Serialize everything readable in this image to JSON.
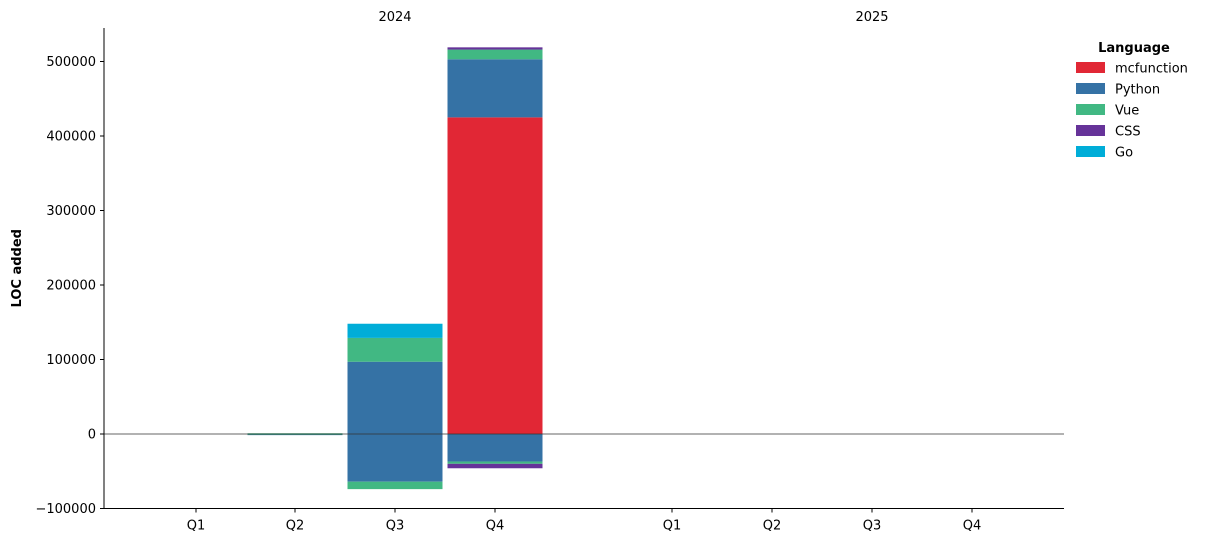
{
  "chart_data": {
    "type": "bar",
    "stacked": true,
    "diverging": true,
    "ylabel": "LOC added",
    "ylim": [
      -100000,
      545000
    ],
    "yticks": [
      -100000,
      0,
      100000,
      200000,
      300000,
      400000,
      500000
    ],
    "ytick_labels": [
      "−100000",
      "0",
      "100000",
      "200000",
      "300000",
      "400000",
      "500000"
    ],
    "groups": [
      "2024",
      "2025"
    ],
    "categories": [
      "Q1",
      "Q2",
      "Q3",
      "Q4"
    ],
    "legend": {
      "title": "Language",
      "position": "top-right"
    },
    "series": [
      {
        "name": "mcfunction",
        "color": "#e12735",
        "values": {
          "2024": {
            "Q1": [
              0,
              0
            ],
            "Q2": [
              0,
              0
            ],
            "Q3": [
              0,
              0
            ],
            "Q4": [
              425000,
              0
            ]
          },
          "2025": {
            "Q1": [
              0,
              0
            ],
            "Q2": [
              0,
              0
            ],
            "Q3": [
              0,
              0
            ],
            "Q4": [
              0,
              0
            ]
          }
        }
      },
      {
        "name": "Python",
        "color": "#3572a5",
        "values": {
          "2024": {
            "Q1": [
              0,
              0
            ],
            "Q2": [
              500,
              0
            ],
            "Q3": [
              97000,
              -64000
            ],
            "Q4": [
              78000,
              -37000
            ]
          },
          "2025": {
            "Q1": [
              0,
              0
            ],
            "Q2": [
              0,
              0
            ],
            "Q3": [
              0,
              0
            ],
            "Q4": [
              0,
              0
            ]
          }
        }
      },
      {
        "name": "Vue",
        "color": "#41b883",
        "values": {
          "2024": {
            "Q1": [
              0,
              0
            ],
            "Q2": [
              500,
              0
            ],
            "Q3": [
              32000,
              -10000
            ],
            "Q4": [
              13000,
              -3000
            ]
          },
          "2025": {
            "Q1": [
              0,
              0
            ],
            "Q2": [
              0,
              0
            ],
            "Q3": [
              0,
              0
            ],
            "Q4": [
              0,
              0
            ]
          }
        }
      },
      {
        "name": "CSS",
        "color": "#663399",
        "values": {
          "2024": {
            "Q1": [
              0,
              0
            ],
            "Q2": [
              0,
              0
            ],
            "Q3": [
              0,
              0
            ],
            "Q4": [
              3000,
              -6000
            ]
          },
          "2025": {
            "Q1": [
              0,
              0
            ],
            "Q2": [
              0,
              0
            ],
            "Q3": [
              0,
              0
            ],
            "Q4": [
              0,
              0
            ]
          }
        }
      },
      {
        "name": "Go",
        "color": "#00add8",
        "values": {
          "2024": {
            "Q1": [
              0,
              0
            ],
            "Q2": [
              0,
              0
            ],
            "Q3": [
              19000,
              0
            ],
            "Q4": [
              0,
              0
            ]
          },
          "2025": {
            "Q1": [
              0,
              0
            ],
            "Q2": [
              0,
              0
            ],
            "Q3": [
              0,
              0
            ],
            "Q4": [
              0,
              0
            ]
          }
        }
      }
    ]
  }
}
